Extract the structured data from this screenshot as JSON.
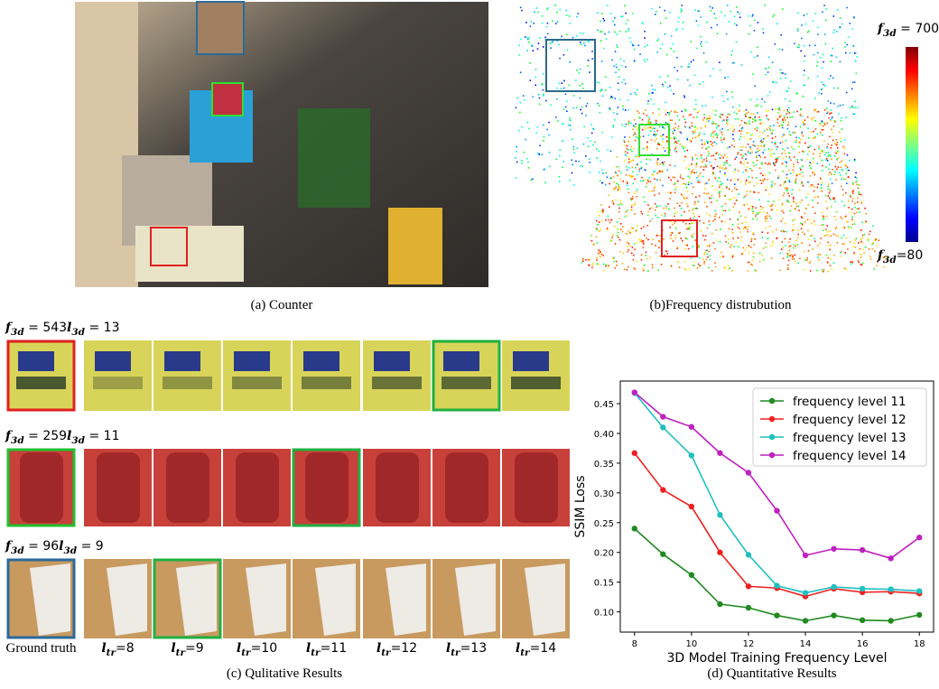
{
  "panels": {
    "a": {
      "caption": "(a) Counter"
    },
    "b": {
      "caption": "(b)Frequency distrubution",
      "colorbar_top": {
        "var": "f",
        "sub": "3d",
        "text": " = 700"
      },
      "colorbar_bottom": {
        "var": "f",
        "sub": "3d",
        "text": "=80"
      }
    },
    "c": {
      "caption": "(c) Qulitative Results",
      "rows": [
        [
          {
            "var": "f",
            "sub": "3d",
            "text": " = 543"
          },
          {
            "var": "l",
            "sub": "3d",
            "text": " = 13"
          }
        ],
        [
          {
            "var": "f",
            "sub": "3d",
            "text": " = 259"
          },
          {
            "var": "l",
            "sub": "3d",
            "text": " = 11"
          }
        ],
        [
          {
            "var": "f",
            "sub": "3d",
            "text": " = 96"
          },
          {
            "var": "l",
            "sub": "3d",
            "text": " = 9"
          }
        ]
      ],
      "ground_truth": "Ground truth",
      "columns": [
        {
          "var": "l",
          "sub": "tr",
          "text": "=8"
        },
        {
          "var": "l",
          "sub": "tr",
          "text": "=9"
        },
        {
          "var": "l",
          "sub": "tr",
          "text": "=10"
        },
        {
          "var": "l",
          "sub": "tr",
          "text": "=11"
        },
        {
          "var": "l",
          "sub": "tr",
          "text": "=12"
        },
        {
          "var": "l",
          "sub": "tr",
          "text": "=13"
        },
        {
          "var": "l",
          "sub": "tr",
          "text": "=14"
        }
      ]
    }
  },
  "chart_data": {
    "type": "line",
    "caption": "(d) Quantitative Results",
    "x_label": "3D Model Training Frequency Level",
    "y_label": "SSIM Loss",
    "x": [
      8,
      9,
      10,
      11,
      12,
      13,
      14,
      15,
      16,
      17,
      18
    ],
    "series": [
      {
        "name": "frequency level 11",
        "color": "#1f8a1f",
        "values": [
          0.24,
          0.197,
          0.162,
          0.113,
          0.107,
          0.094,
          0.085,
          0.094,
          0.086,
          0.085,
          0.095
        ]
      },
      {
        "name": "frequency level 12",
        "color": "#f02020",
        "values": [
          0.367,
          0.305,
          0.277,
          0.2,
          0.143,
          0.14,
          0.126,
          0.139,
          0.133,
          0.134,
          0.131
        ]
      },
      {
        "name": "frequency level 13",
        "color": "#1fc0c0",
        "values": [
          0.468,
          0.41,
          0.363,
          0.263,
          0.196,
          0.144,
          0.132,
          0.142,
          0.139,
          0.138,
          0.135
        ]
      },
      {
        "name": "frequency level 14",
        "color": "#c020c0",
        "values": [
          0.469,
          0.428,
          0.411,
          0.367,
          0.334,
          0.27,
          0.195,
          0.206,
          0.204,
          0.19,
          0.225
        ]
      }
    ],
    "xlim": [
      7.5,
      18.5
    ],
    "ylim": [
      0.066,
      0.488
    ],
    "xticks": [
      8,
      10,
      12,
      14,
      16,
      18
    ],
    "yticks": [
      {
        "value": 0.1,
        "label": "0.10"
      },
      {
        "value": 0.15,
        "label": "0.15"
      },
      {
        "value": 0.2,
        "label": "0.20"
      },
      {
        "value": 0.25,
        "label": "0.25"
      },
      {
        "value": 0.3,
        "label": "0.30"
      },
      {
        "value": 0.35,
        "label": "0.35"
      },
      {
        "value": 0.4,
        "label": "0.40"
      },
      {
        "value": 0.45,
        "label": "0.45"
      }
    ],
    "legend": "upper right"
  }
}
